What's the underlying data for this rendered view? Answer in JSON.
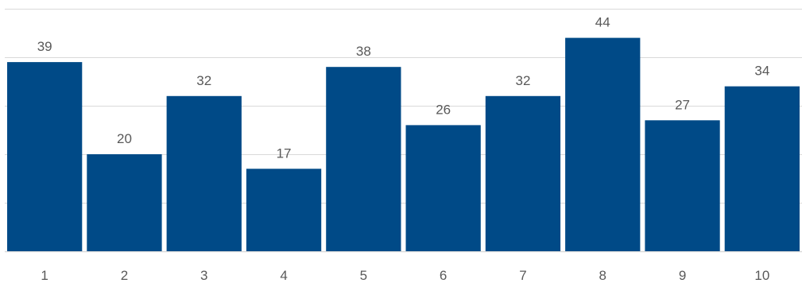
{
  "chart_data": {
    "type": "bar",
    "categories": [
      "1",
      "2",
      "3",
      "4",
      "5",
      "6",
      "7",
      "8",
      "9",
      "10"
    ],
    "values": [
      39,
      20,
      32,
      17,
      38,
      26,
      32,
      44,
      27,
      34
    ],
    "title": "",
    "xlabel": "",
    "ylabel": "",
    "ylim": [
      0,
      50
    ],
    "grid": true,
    "legend": "none",
    "bar_color": "#004a87",
    "grid_color": "#d9d9d9",
    "label_color": "#595959"
  }
}
